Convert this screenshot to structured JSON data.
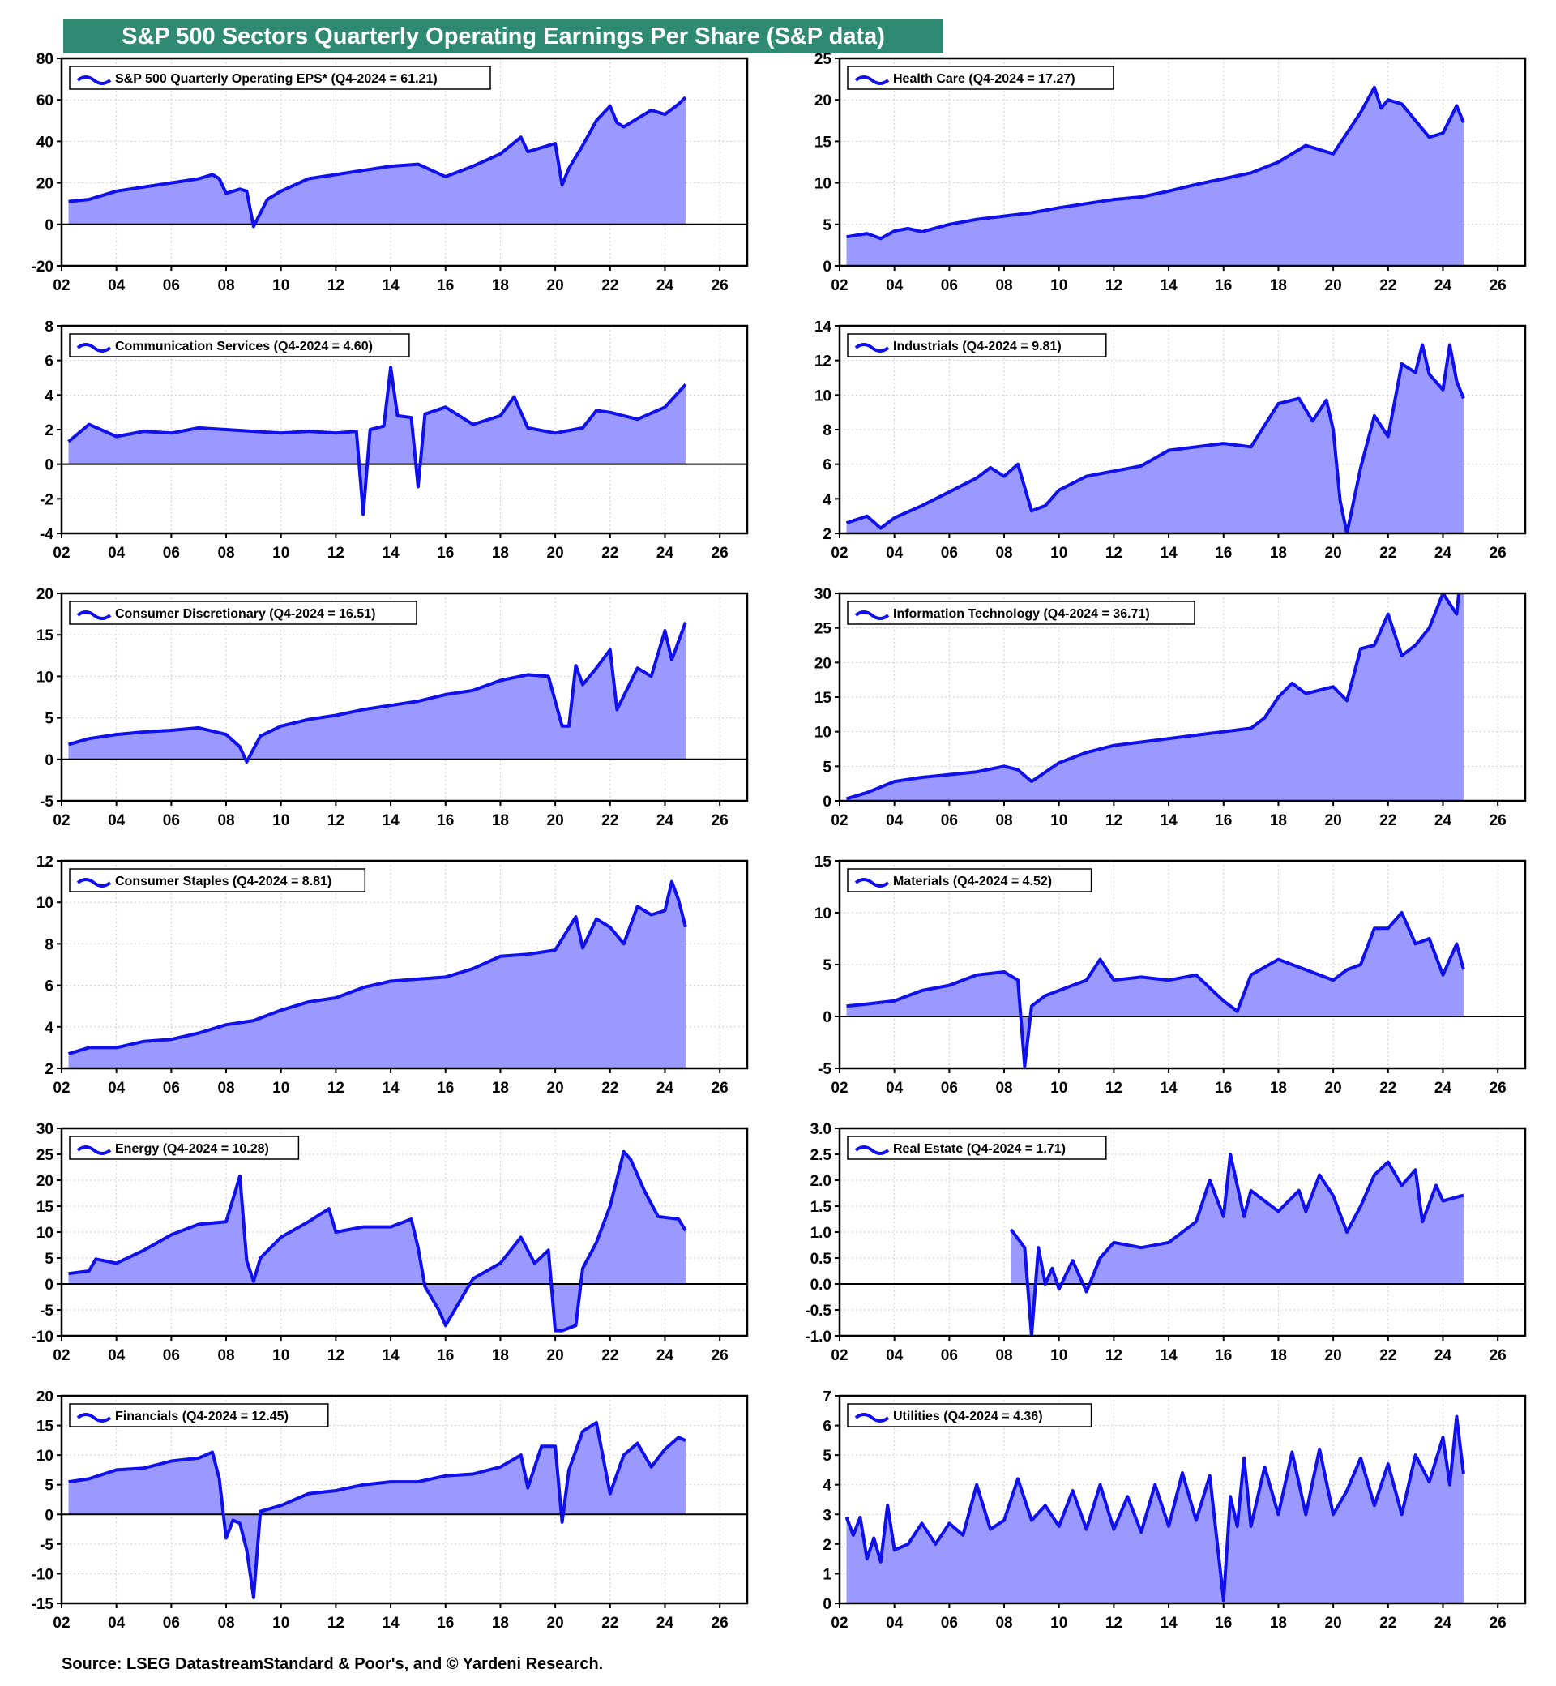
{
  "title": "S&P 500 Sectors Quarterly Operating Earnings Per Share (S&P data)",
  "source": "Source: LSEG DatastreamStandard & Poor's, and © Yardeni Research.",
  "colors": {
    "header_bg": "#2e8b72",
    "line": "#1010ee",
    "fill": "#9999ff"
  },
  "chart_data": [
    {
      "type": "area",
      "legend": "S&P 500 Quarterly Operating EPS* (Q4-2024 = 61.21)",
      "ylim": [
        -20,
        80
      ],
      "yticks": [
        "80",
        "60",
        "40",
        "20",
        "0",
        "-20"
      ],
      "xticks": [
        "02",
        "04",
        "06",
        "08",
        "10",
        "12",
        "14",
        "16",
        "18",
        "20",
        "22",
        "24",
        "26"
      ],
      "xlim": [
        2002,
        2027
      ],
      "x": [
        2002.25,
        2003,
        2004,
        2005,
        2006,
        2007,
        2007.5,
        2007.75,
        2008,
        2008.5,
        2008.75,
        2009,
        2009.5,
        2010,
        2011,
        2012,
        2013,
        2014,
        2015,
        2016,
        2017,
        2018,
        2018.75,
        2019,
        2020,
        2020.25,
        2020.5,
        2021,
        2021.5,
        2022,
        2022.25,
        2022.5,
        2023,
        2023.5,
        2024,
        2024.5,
        2024.75
      ],
      "y": [
        11,
        12,
        16,
        18,
        20,
        22,
        24,
        22,
        15,
        17,
        16,
        -1,
        12,
        16,
        22,
        24,
        26,
        28,
        29,
        23,
        28,
        34,
        42,
        35,
        39,
        19,
        27,
        38,
        50,
        57,
        49,
        47,
        51,
        55,
        53,
        58,
        61.21
      ]
    },
    {
      "type": "area",
      "legend": "Health Care (Q4-2024 = 17.27)",
      "ylim": [
        0,
        25
      ],
      "yticks": [
        "25",
        "20",
        "15",
        "10",
        "5",
        "0"
      ],
      "xticks": [
        "02",
        "04",
        "06",
        "08",
        "10",
        "12",
        "14",
        "16",
        "18",
        "20",
        "22",
        "24",
        "26"
      ],
      "xlim": [
        2002,
        2027
      ],
      "x": [
        2002.25,
        2003,
        2003.5,
        2004,
        2004.5,
        2005,
        2006,
        2007,
        2008,
        2009,
        2010,
        2011,
        2012,
        2013,
        2014,
        2015,
        2016,
        2017,
        2018,
        2019,
        2020,
        2021,
        2021.5,
        2021.75,
        2022,
        2022.5,
        2023,
        2023.5,
        2024,
        2024.5,
        2024.75
      ],
      "y": [
        3.5,
        3.9,
        3.3,
        4.2,
        4.5,
        4.1,
        5.0,
        5.6,
        6.0,
        6.4,
        7.0,
        7.5,
        8.0,
        8.3,
        9.0,
        9.8,
        10.5,
        11.2,
        12.5,
        14.5,
        13.5,
        18.5,
        21.5,
        19.0,
        20.0,
        19.5,
        17.5,
        15.5,
        16.0,
        19.3,
        17.27
      ]
    },
    {
      "type": "area",
      "legend": "Communication Services (Q4-2024 = 4.60)",
      "ylim": [
        -4,
        8
      ],
      "yticks": [
        "8",
        "6",
        "4",
        "2",
        "0",
        "-2",
        "-4"
      ],
      "xticks": [
        "02",
        "04",
        "06",
        "08",
        "10",
        "12",
        "14",
        "16",
        "18",
        "20",
        "22",
        "24",
        "26"
      ],
      "xlim": [
        2002,
        2027
      ],
      "x": [
        2002.25,
        2003,
        2004,
        2005,
        2006,
        2007,
        2008,
        2009,
        2010,
        2011,
        2012,
        2012.75,
        2013,
        2013.25,
        2013.75,
        2014,
        2014.25,
        2014.75,
        2015,
        2015.25,
        2016,
        2017,
        2018,
        2018.5,
        2019,
        2020,
        2021,
        2021.5,
        2022,
        2023,
        2024,
        2024.75
      ],
      "y": [
        1.3,
        2.3,
        1.6,
        1.9,
        1.8,
        2.1,
        2.0,
        1.9,
        1.8,
        1.9,
        1.8,
        1.9,
        -2.9,
        2.0,
        2.2,
        5.6,
        2.8,
        2.7,
        -1.3,
        2.9,
        3.3,
        2.3,
        2.8,
        3.9,
        2.1,
        1.8,
        2.1,
        3.1,
        3.0,
        2.6,
        3.3,
        4.6
      ]
    },
    {
      "type": "area",
      "legend": "Industrials (Q4-2024 = 9.81)",
      "ylim": [
        2,
        14
      ],
      "yticks": [
        "14",
        "12",
        "10",
        "8",
        "6",
        "4",
        "2"
      ],
      "xticks": [
        "02",
        "04",
        "06",
        "08",
        "10",
        "12",
        "14",
        "16",
        "18",
        "20",
        "22",
        "24",
        "26"
      ],
      "xlim": [
        2002,
        2027
      ],
      "x": [
        2002.25,
        2003,
        2003.5,
        2004,
        2005,
        2006,
        2007,
        2007.5,
        2008,
        2008.5,
        2009,
        2009.5,
        2010,
        2011,
        2012,
        2013,
        2014,
        2015,
        2016,
        2017,
        2018,
        2018.75,
        2019.25,
        2019.75,
        2020,
        2020.25,
        2020.5,
        2021,
        2021.5,
        2022,
        2022.5,
        2023,
        2023.25,
        2023.5,
        2024,
        2024.25,
        2024.5,
        2024.75
      ],
      "y": [
        2.6,
        3.0,
        2.3,
        2.9,
        3.6,
        4.4,
        5.2,
        5.8,
        5.3,
        6.0,
        3.3,
        3.6,
        4.5,
        5.3,
        5.6,
        5.9,
        6.8,
        7.0,
        7.2,
        7.0,
        9.5,
        9.8,
        8.5,
        9.7,
        8.0,
        3.9,
        2.0,
        5.8,
        8.8,
        7.6,
        11.8,
        11.3,
        12.9,
        11.2,
        10.3,
        12.9,
        10.8,
        9.81
      ]
    },
    {
      "type": "area",
      "legend": "Consumer Discretionary (Q4-2024 = 16.51)",
      "ylim": [
        -5,
        20
      ],
      "yticks": [
        "20",
        "15",
        "10",
        "5",
        "0",
        "-5"
      ],
      "xticks": [
        "02",
        "04",
        "06",
        "08",
        "10",
        "12",
        "14",
        "16",
        "18",
        "20",
        "22",
        "24",
        "26"
      ],
      "xlim": [
        2002,
        2027
      ],
      "x": [
        2002.25,
        2003,
        2004,
        2005,
        2006,
        2007,
        2008,
        2008.5,
        2008.75,
        2009.25,
        2010,
        2011,
        2012,
        2013,
        2014,
        2015,
        2016,
        2017,
        2018,
        2019,
        2019.75,
        2020.25,
        2020.5,
        2020.75,
        2021,
        2021.5,
        2022,
        2022.25,
        2023,
        2023.5,
        2024,
        2024.25,
        2024.75
      ],
      "y": [
        1.8,
        2.5,
        3.0,
        3.3,
        3.5,
        3.8,
        3.0,
        1.5,
        -0.3,
        2.8,
        4.0,
        4.8,
        5.3,
        6.0,
        6.5,
        7.0,
        7.8,
        8.3,
        9.5,
        10.2,
        10.0,
        4.0,
        4.0,
        11.3,
        9.0,
        11.0,
        13.2,
        6.0,
        11.0,
        10.0,
        15.5,
        12.0,
        16.51
      ]
    },
    {
      "type": "area",
      "legend": "Information Technology (Q4-2024 = 36.71)",
      "ylim": [
        0,
        30
      ],
      "yticks": [
        "30",
        "25",
        "20",
        "15",
        "10",
        "5",
        "0"
      ],
      "xticks": [
        "02",
        "04",
        "06",
        "08",
        "10",
        "12",
        "14",
        "16",
        "18",
        "20",
        "22",
        "24",
        "26"
      ],
      "xlim": [
        2002,
        2027
      ],
      "x": [
        2002.25,
        2003,
        2004,
        2005,
        2006,
        2007,
        2008,
        2008.5,
        2009,
        2010,
        2011,
        2012,
        2013,
        2014,
        2015,
        2016,
        2017,
        2017.5,
        2018,
        2018.5,
        2019,
        2020,
        2020.5,
        2021,
        2021.5,
        2022,
        2022.5,
        2023,
        2023.5,
        2024,
        2024.5,
        2024.75
      ],
      "y": [
        0.3,
        1.2,
        2.8,
        3.4,
        3.8,
        4.2,
        5.0,
        4.5,
        2.8,
        5.5,
        7.0,
        8.0,
        8.5,
        9.0,
        9.5,
        10.0,
        10.5,
        12.0,
        15.0,
        17.0,
        15.5,
        16.5,
        14.5,
        22.0,
        22.5,
        27.0,
        21.0,
        22.5,
        25.0,
        30.0,
        27.0,
        36.71
      ]
    },
    {
      "type": "area",
      "legend": "Consumer Staples (Q4-2024 = 8.81)",
      "ylim": [
        2,
        12
      ],
      "yticks": [
        "12",
        "10",
        "8",
        "6",
        "4",
        "2"
      ],
      "xticks": [
        "02",
        "04",
        "06",
        "08",
        "10",
        "12",
        "14",
        "16",
        "18",
        "20",
        "22",
        "24",
        "26"
      ],
      "xlim": [
        2002,
        2027
      ],
      "x": [
        2002.25,
        2003,
        2004,
        2005,
        2006,
        2007,
        2008,
        2009,
        2010,
        2011,
        2012,
        2013,
        2014,
        2015,
        2016,
        2017,
        2018,
        2019,
        2020,
        2020.75,
        2021,
        2021.5,
        2022,
        2022.5,
        2023,
        2023.5,
        2024,
        2024.25,
        2024.5,
        2024.75
      ],
      "y": [
        2.7,
        3.0,
        3.0,
        3.3,
        3.4,
        3.7,
        4.1,
        4.3,
        4.8,
        5.2,
        5.4,
        5.9,
        6.2,
        6.3,
        6.4,
        6.8,
        7.4,
        7.5,
        7.7,
        9.3,
        7.8,
        9.2,
        8.8,
        8.0,
        9.8,
        9.4,
        9.6,
        11.0,
        10.1,
        8.81
      ]
    },
    {
      "type": "area",
      "legend": "Materials (Q4-2024 = 4.52)",
      "ylim": [
        -5,
        15
      ],
      "yticks": [
        "15",
        "10",
        "5",
        "0",
        "-5"
      ],
      "xticks": [
        "02",
        "04",
        "06",
        "08",
        "10",
        "12",
        "14",
        "16",
        "18",
        "20",
        "22",
        "24",
        "26"
      ],
      "xlim": [
        2002,
        2027
      ],
      "x": [
        2002.25,
        2003,
        2004,
        2005,
        2006,
        2007,
        2008,
        2008.5,
        2008.75,
        2009,
        2009.5,
        2010,
        2011,
        2011.5,
        2012,
        2013,
        2014,
        2015,
        2016,
        2016.5,
        2017,
        2018,
        2019,
        2020,
        2020.5,
        2021,
        2021.5,
        2022,
        2022.5,
        2023,
        2023.5,
        2024,
        2024.5,
        2024.75
      ],
      "y": [
        1.0,
        1.2,
        1.5,
        2.5,
        3.0,
        4.0,
        4.3,
        3.5,
        -4.8,
        1.0,
        2.0,
        2.5,
        3.5,
        5.5,
        3.5,
        3.8,
        3.5,
        4.0,
        1.5,
        0.5,
        4.0,
        5.5,
        4.5,
        3.5,
        4.5,
        5.0,
        8.5,
        8.5,
        10.0,
        7.0,
        7.5,
        4.0,
        7.0,
        4.52
      ]
    },
    {
      "type": "area",
      "legend": "Energy (Q4-2024 = 10.28)",
      "ylim": [
        -10,
        30
      ],
      "yticks": [
        "30",
        "25",
        "20",
        "15",
        "10",
        "5",
        "0",
        "-5",
        "-10"
      ],
      "xticks": [
        "02",
        "04",
        "06",
        "08",
        "10",
        "12",
        "14",
        "16",
        "18",
        "20",
        "22",
        "24",
        "26"
      ],
      "xlim": [
        2002,
        2027
      ],
      "x": [
        2002.25,
        2003,
        2003.25,
        2004,
        2005,
        2006,
        2007,
        2008,
        2008.5,
        2008.75,
        2009,
        2009.25,
        2010,
        2011,
        2011.75,
        2012,
        2013,
        2014,
        2014.75,
        2015,
        2015.25,
        2015.75,
        2016,
        2017,
        2018,
        2018.75,
        2019.25,
        2019.75,
        2020,
        2020.25,
        2020.75,
        2021,
        2021.5,
        2022,
        2022.5,
        2022.75,
        2023.25,
        2023.75,
        2024.5,
        2024.75
      ],
      "y": [
        2.0,
        2.5,
        4.8,
        4.0,
        6.5,
        9.5,
        11.5,
        12.0,
        20.8,
        4.5,
        0.5,
        5.0,
        9.0,
        12.0,
        14.5,
        10.0,
        11.0,
        11.0,
        12.5,
        7.0,
        -0.5,
        -5.0,
        -8.0,
        1.0,
        4.0,
        9.0,
        4.0,
        6.5,
        -9.0,
        -9.0,
        -8.0,
        3.0,
        8.0,
        15.0,
        25.5,
        24.0,
        18.0,
        13.0,
        12.5,
        10.28
      ]
    },
    {
      "type": "area",
      "legend": "Real Estate (Q4-2024 = 1.71)",
      "ylim": [
        -1.0,
        3.0
      ],
      "yticks": [
        "3.0",
        "2.5",
        "2.0",
        "1.5",
        "1.0",
        "0.5",
        "0.0",
        "-0.5",
        "-1.0"
      ],
      "xticks": [
        "02",
        "04",
        "06",
        "08",
        "10",
        "12",
        "14",
        "16",
        "18",
        "20",
        "22",
        "24",
        "26"
      ],
      "xlim": [
        2002,
        2027
      ],
      "x": [
        2008.25,
        2008.75,
        2009,
        2009.25,
        2009.5,
        2009.75,
        2010,
        2010.5,
        2011,
        2011.5,
        2012,
        2013,
        2014,
        2015,
        2015.5,
        2016,
        2016.25,
        2016.75,
        2017,
        2018,
        2018.75,
        2019,
        2019.5,
        2020,
        2020.5,
        2021,
        2021.5,
        2022,
        2022.5,
        2023,
        2023.25,
        2023.75,
        2024,
        2024.75
      ],
      "y": [
        1.05,
        0.7,
        -1.0,
        0.7,
        0.0,
        0.3,
        -0.1,
        0.45,
        -0.15,
        0.5,
        0.8,
        0.7,
        0.8,
        1.2,
        2.0,
        1.3,
        2.5,
        1.3,
        1.8,
        1.4,
        1.8,
        1.4,
        2.1,
        1.7,
        1.0,
        1.5,
        2.1,
        2.35,
        1.9,
        2.2,
        1.2,
        1.9,
        1.6,
        1.71
      ]
    },
    {
      "type": "area",
      "legend": "Financials (Q4-2024 = 12.45)",
      "ylim": [
        -15,
        20
      ],
      "yticks": [
        "20",
        "15",
        "10",
        "5",
        "0",
        "-5",
        "-10",
        "-15"
      ],
      "xticks": [
        "02",
        "04",
        "06",
        "08",
        "10",
        "12",
        "14",
        "16",
        "18",
        "20",
        "22",
        "24",
        "26"
      ],
      "xlim": [
        2002,
        2027
      ],
      "x": [
        2002.25,
        2003,
        2004,
        2005,
        2006,
        2007,
        2007.5,
        2007.75,
        2008,
        2008.25,
        2008.5,
        2008.75,
        2009,
        2009.25,
        2010,
        2011,
        2012,
        2013,
        2014,
        2015,
        2016,
        2017,
        2018,
        2018.75,
        2019,
        2019.5,
        2020,
        2020.25,
        2020.5,
        2021,
        2021.5,
        2022,
        2022.5,
        2023,
        2023.5,
        2024,
        2024.5,
        2024.75
      ],
      "y": [
        5.5,
        6.0,
        7.5,
        7.8,
        9.0,
        9.5,
        10.5,
        6.0,
        -4.0,
        -1.0,
        -1.5,
        -6.0,
        -14.0,
        0.5,
        1.5,
        3.5,
        4.0,
        5.0,
        5.5,
        5.5,
        6.5,
        6.8,
        8.0,
        10.0,
        4.5,
        11.5,
        11.5,
        -1.3,
        7.5,
        14.0,
        15.5,
        3.5,
        10.0,
        12.0,
        8.0,
        11.0,
        13.0,
        12.45
      ]
    },
    {
      "type": "area",
      "legend": "Utilities (Q4-2024 = 4.36)",
      "ylim": [
        0,
        7
      ],
      "yticks": [
        "7",
        "6",
        "5",
        "4",
        "3",
        "2",
        "1",
        "0"
      ],
      "xticks": [
        "02",
        "04",
        "06",
        "08",
        "10",
        "12",
        "14",
        "16",
        "18",
        "20",
        "22",
        "24",
        "26"
      ],
      "xlim": [
        2002,
        2027
      ],
      "x": [
        2002.25,
        2002.5,
        2002.75,
        2003,
        2003.25,
        2003.5,
        2003.75,
        2004,
        2004.5,
        2005,
        2005.5,
        2006,
        2006.5,
        2007,
        2007.5,
        2008,
        2008.5,
        2009,
        2009.5,
        2010,
        2010.5,
        2011,
        2011.5,
        2012,
        2012.5,
        2013,
        2013.5,
        2014,
        2014.5,
        2015,
        2015.5,
        2016,
        2016.25,
        2016.5,
        2016.75,
        2017,
        2017.5,
        2018,
        2018.5,
        2019,
        2019.5,
        2020,
        2020.5,
        2021,
        2021.5,
        2022,
        2022.5,
        2023,
        2023.5,
        2024,
        2024.25,
        2024.5,
        2024.75
      ],
      "y": [
        2.9,
        2.3,
        2.9,
        1.5,
        2.2,
        1.4,
        3.3,
        1.8,
        2.0,
        2.7,
        2.0,
        2.7,
        2.3,
        4.0,
        2.5,
        2.8,
        4.2,
        2.8,
        3.3,
        2.6,
        3.8,
        2.5,
        4.0,
        2.5,
        3.6,
        2.4,
        4.0,
        2.6,
        4.4,
        2.8,
        4.3,
        0.1,
        3.6,
        2.6,
        4.9,
        2.6,
        4.6,
        3.0,
        5.1,
        3.0,
        5.2,
        3.0,
        3.8,
        4.9,
        3.3,
        4.7,
        3.0,
        5.0,
        4.1,
        5.6,
        4.0,
        6.3,
        4.36
      ]
    }
  ]
}
